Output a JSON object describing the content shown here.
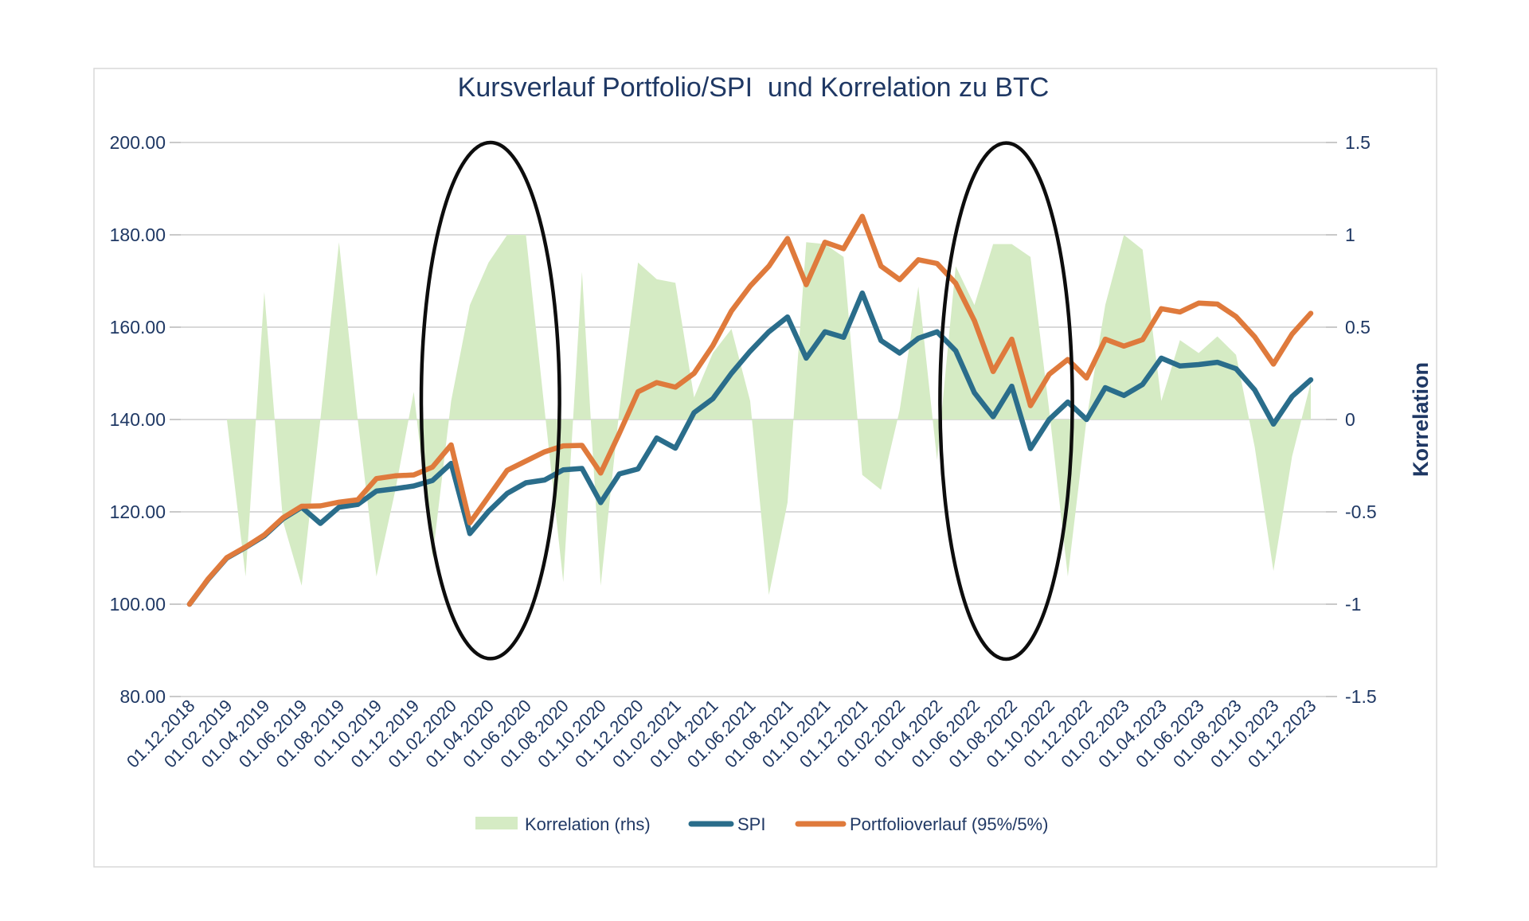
{
  "title": "Kursverlauf Portfolio/SPI  und Korrelation zu BTC",
  "chart_data": {
    "type": "line",
    "subtype": "dual-axis line chart with correlation area series",
    "x_start": "01.12.2018",
    "x_end": "01.12.2023",
    "x_step": "monthly (labels every 2 months)",
    "x_labels": [
      "01.12.2018",
      "01.02.2019",
      "01.04.2019",
      "01.06.2019",
      "01.08.2019",
      "01.10.2019",
      "01.12.2019",
      "01.02.2020",
      "01.04.2020",
      "01.06.2020",
      "01.08.2020",
      "01.10.2020",
      "01.12.2020",
      "01.02.2021",
      "01.04.2021",
      "01.06.2021",
      "01.08.2021",
      "01.10.2021",
      "01.12.2021",
      "01.02.2022",
      "01.04.2022",
      "01.06.2022",
      "01.08.2022",
      "01.10.2022",
      "01.12.2022",
      "01.02.2023",
      "01.04.2023",
      "01.06.2023",
      "01.08.2023",
      "01.10.2023",
      "01.12.2023"
    ],
    "left_axis": {
      "ticks": [
        "200.00",
        "180.00",
        "160.00",
        "140.00",
        "120.00",
        "100.00",
        "80.00"
      ],
      "min": 80,
      "max": 200,
      "gridlines": true
    },
    "right_axis": {
      "label": "Korrelation",
      "ticks": [
        "1.5",
        "1",
        "0.5",
        "0",
        "-0.5",
        "-1",
        "-1.5"
      ],
      "min": -1.5,
      "max": 1.5
    },
    "series": [
      {
        "name": "Korrelation (rhs)",
        "type": "area",
        "axis": "right",
        "color": "#D5EBC4",
        "values": [
          0,
          0,
          0,
          -0.85,
          0.69,
          -0.55,
          -0.9,
          0,
          0.96,
          0,
          -0.85,
          -0.39,
          0.15,
          -0.75,
          0.1,
          0.62,
          0.85,
          1,
          1,
          0.05,
          -0.88,
          0.8,
          -0.9,
          0.05,
          0.85,
          0.76,
          0.74,
          0.12,
          0.36,
          0.49,
          0.1,
          -0.95,
          -0.45,
          0.96,
          0.95,
          0.88,
          -0.3,
          -0.38,
          0.05,
          0.72,
          -0.22,
          0.83,
          0.62,
          0.95,
          0.95,
          0.88,
          0.05,
          -0.85,
          0,
          0.62,
          1,
          0.92,
          0.1,
          0.43,
          0.36,
          0.45,
          0.35,
          -0.15,
          -0.82,
          -0.2,
          0.2
        ]
      },
      {
        "name": "SPI",
        "type": "line",
        "axis": "left",
        "color": "#2A6D8B",
        "values": [
          100,
          105.4,
          110,
          112.3,
          114.8,
          118.5,
          121,
          117.5,
          121,
          121.6,
          124.5,
          125,
          125.6,
          126.8,
          130.5,
          115.3,
          120.1,
          124,
          126.3,
          126.9,
          129.1,
          129.4,
          122,
          128.2,
          129.3,
          136,
          133.8,
          141.5,
          144.5,
          150,
          154.8,
          159,
          162.2,
          153.3,
          159,
          157.8,
          167.4,
          157.1,
          154.4,
          157.6,
          159,
          154.9,
          145.8,
          140.6,
          147.2,
          133.7,
          140,
          143.8,
          140,
          146.9,
          145.2,
          147.6,
          153.3,
          151.6,
          151.9,
          152.4,
          151,
          146.4,
          139,
          145,
          148.6
        ]
      },
      {
        "name": "Portfolioverlauf (95%/5%)",
        "type": "line",
        "axis": "left",
        "color": "#DF7A3C",
        "values": [
          100,
          105.5,
          110.1,
          112.4,
          115,
          118.7,
          121.2,
          121.3,
          122.1,
          122.6,
          127.2,
          127.8,
          128,
          129.7,
          134.5,
          117.6,
          123.3,
          129,
          131,
          133,
          134.3,
          134.4,
          128.4,
          137,
          146,
          148,
          147,
          150,
          156,
          163.5,
          168.9,
          173.2,
          179.2,
          169.2,
          178.4,
          177,
          184,
          173.2,
          170.3,
          174.6,
          173.8,
          169.5,
          161.4,
          150.4,
          157.4,
          143,
          149.8,
          153,
          149,
          157.4,
          155.9,
          157.3,
          164,
          163.3,
          165.2,
          165,
          162.3,
          157.9,
          152,
          158.5,
          163
        ]
      }
    ],
    "annotations": [
      {
        "shape": "ellipse",
        "meaning": "highlight COVID crash period early-mid 2020",
        "x_index": 16.1,
        "y_value": 144.1,
        "rx_months": 3.7,
        "ry_value": 55.9,
        "stroke": "#0D0D0D"
      },
      {
        "shape": "ellipse",
        "meaning": "highlight mid-2022 drawdown period",
        "x_index": 43.7,
        "y_value": 144.0,
        "rx_months": 3.54,
        "ry_value": 55.9,
        "stroke": "#0D0D0D"
      }
    ]
  },
  "legend": {
    "position": "bottom-center",
    "items": [
      {
        "label": "Korrelation (rhs)",
        "swatch": "area-rect",
        "color": "#D5EBC4"
      },
      {
        "label": "SPI",
        "swatch": "line",
        "color": "#2A6D8B"
      },
      {
        "label": "Portfolioverlauf (95%/5%)",
        "swatch": "line",
        "color": "#DF7A3C"
      }
    ]
  },
  "colors": {
    "text_navy": "#1F3864",
    "gridline": "#D9D9D9",
    "tick": "#C9C9C9",
    "figure_border": "#D9D9D9",
    "background": "#FFFFFF"
  }
}
